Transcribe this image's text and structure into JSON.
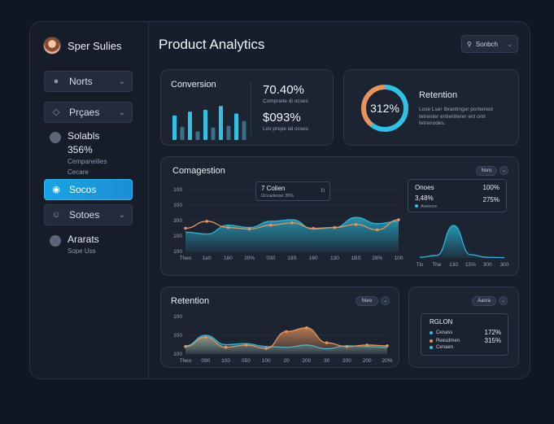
{
  "sidebar": {
    "profile_name": "Sper Sulies",
    "nav": [
      {
        "label": "Norts",
        "icon": "user-icon"
      },
      {
        "label": "Prçaes",
        "icon": "tag-icon"
      }
    ],
    "solabls": {
      "title": "Solabls",
      "value": "356%",
      "sub1": "Cempaneilies",
      "sub2": "Cecare"
    },
    "active": {
      "label": "Socos",
      "icon": "circle-icon"
    },
    "sotoes": {
      "label": "Sotoes",
      "icon": "smile-icon"
    },
    "ararats": {
      "title": "Ararats",
      "sub": "Sope Uss"
    }
  },
  "header": {
    "title": "Product Analytics",
    "search_label": "Sonbch"
  },
  "conversion": {
    "title": "Conversion",
    "value1": "70.40%",
    "sub1": "Compnete di ocses",
    "value2": "$093%",
    "sub2": "Lov prepe ial ocses"
  },
  "retention_top": {
    "title": "Retention",
    "ring_value": "312%",
    "desc1": "Lose Lser Ibrantinger portemed",
    "desc2": "tetrenter entieritierer ent onti",
    "desc3": "tetrenodes."
  },
  "congestion": {
    "title": "Comagestion",
    "pill": "Nsro",
    "tooltip_title": "7 Colien",
    "tooltip_sub": "Occarlesse 35%",
    "tooltip_right": "Ŋ",
    "yticks": [
      "100",
      "100",
      "300",
      "100",
      "100"
    ],
    "xticks": [
      "Theo",
      "1e0",
      "160",
      "30%",
      "030",
      "19S",
      "160",
      "130",
      "1BS",
      "28%",
      "100"
    ],
    "side": {
      "label1": "Onoes",
      "value1": "100%",
      "label2": "3,48%",
      "value2": "275%",
      "legend": "Avencre"
    },
    "side_xticks": [
      "Tlo",
      "The",
      "130",
      "15%",
      "300",
      "300"
    ]
  },
  "retention_bottom": {
    "title": "Retention",
    "pill": "Nsre",
    "yticks": [
      "100",
      "100",
      "100"
    ],
    "xticks": [
      "Theo",
      "090",
      "100",
      "050",
      "100",
      "20",
      "200",
      "30",
      "200",
      "200",
      "20%"
    ]
  },
  "region": {
    "pill": "Aasra",
    "title": "RGLON",
    "rows": [
      {
        "label": "Cenass",
        "value": "172%",
        "color": "#2fc2e4"
      },
      {
        "label": "Reesdmen",
        "value": "315%",
        "color": "#e8935b"
      },
      {
        "label": "Cenaen",
        "value": "",
        "color": "#2fc2e4"
      }
    ]
  },
  "chart_data": [
    {
      "type": "area",
      "title": "Comagestion",
      "categories": [
        "Theo",
        "1e0",
        "160",
        "30%",
        "030",
        "19S",
        "160",
        "130",
        "1BS",
        "28%",
        "100"
      ],
      "series": [
        {
          "values": [
            50,
            45,
            68,
            62,
            78,
            82,
            58,
            62,
            88,
            72,
            78
          ],
          "color": "#2bb8d8"
        },
        {
          "values": [
            60,
            78,
            62,
            58,
            68,
            74,
            60,
            62,
            70,
            56,
            82
          ],
          "color": "#e8935b"
        }
      ],
      "ylim": [
        0,
        160
      ]
    },
    {
      "type": "area",
      "categories": [
        "Tlo",
        "The",
        "130",
        "15%",
        "300",
        "300"
      ],
      "series": [
        {
          "values": [
            2,
            8,
            100,
            10,
            2,
            1
          ],
          "color": "#2bb8d8"
        }
      ],
      "ylim": [
        0,
        120
      ]
    },
    {
      "type": "area",
      "title": "Retention",
      "categories": [
        "Theo",
        "090",
        "100",
        "050",
        "100",
        "20",
        "200",
        "30",
        "200",
        "200",
        "20%"
      ],
      "series": [
        {
          "values": [
            22,
            50,
            25,
            28,
            20,
            18,
            24,
            14,
            22,
            20,
            18
          ],
          "color": "#2bb8d8"
        },
        {
          "values": [
            20,
            45,
            18,
            24,
            15,
            60,
            70,
            30,
            20,
            24,
            22
          ],
          "color": "#e8935b"
        }
      ],
      "ylim": [
        0,
        100
      ]
    },
    {
      "type": "bar",
      "title": "Conversion",
      "values": [
        52,
        28,
        60,
        18,
        64,
        26,
        72,
        30,
        56,
        40
      ],
      "ylim": [
        0,
        100
      ]
    },
    {
      "type": "pie",
      "title": "Retention",
      "values": [
        62,
        38
      ],
      "colors": [
        "#2fc2e4",
        "#e8935b"
      ]
    }
  ]
}
